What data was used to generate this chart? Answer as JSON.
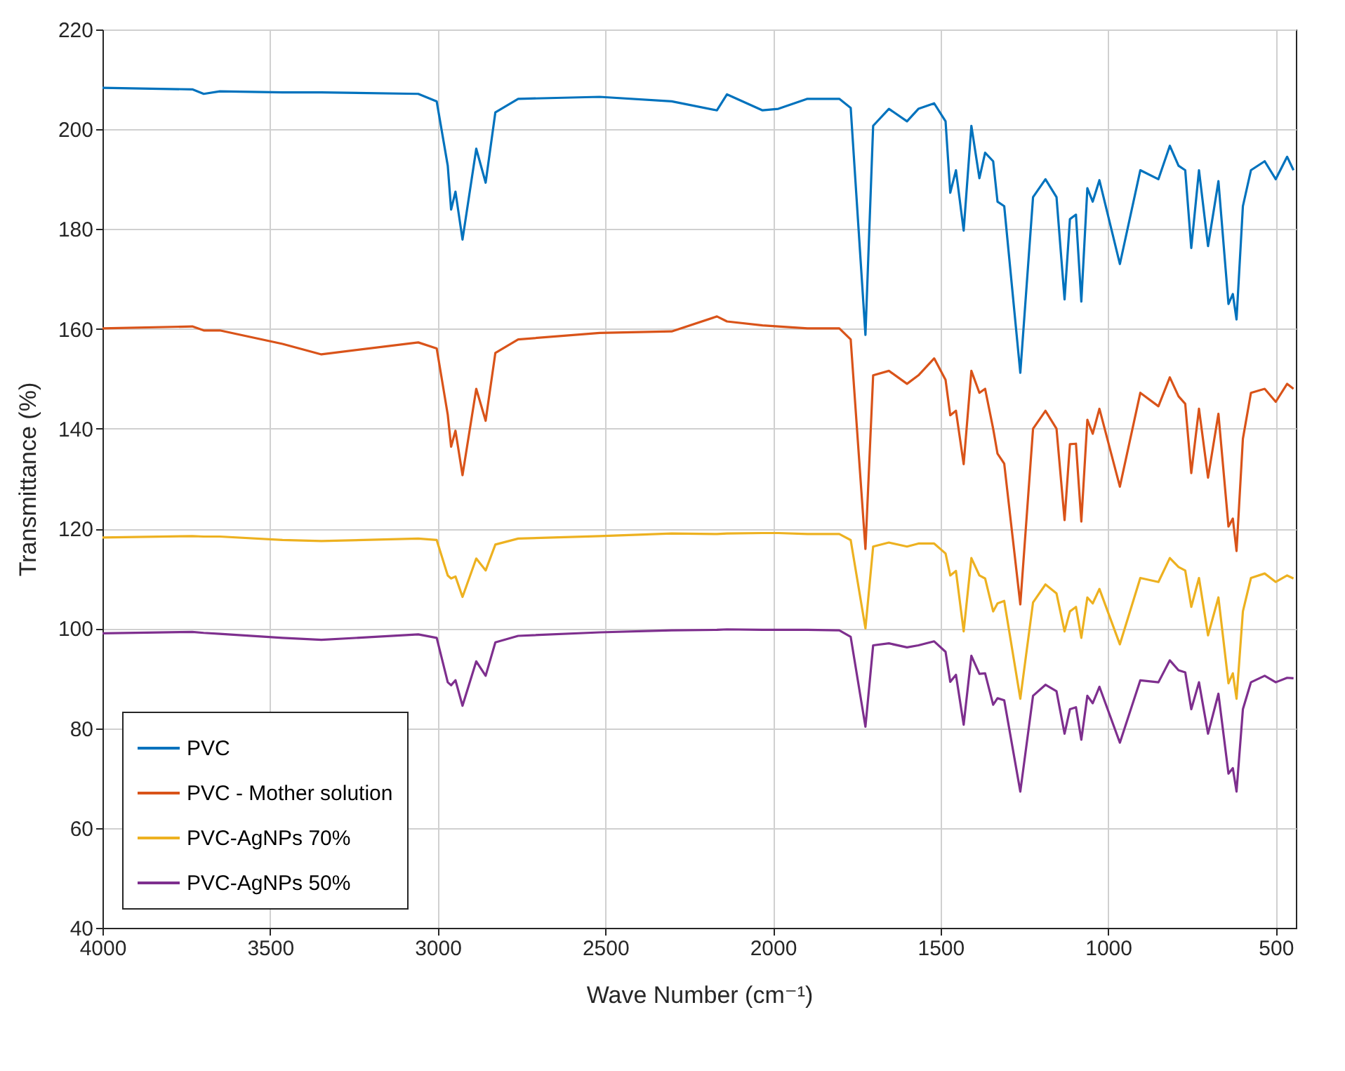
{
  "chart_data": {
    "type": "line",
    "xlabel": "Wave Number (cm⁻¹)",
    "ylabel": "Transmittance (%)",
    "x": [
      4000,
      3732,
      3698,
      3650,
      3463,
      3347,
      3058,
      3003,
      2970,
      2960,
      2947,
      2926,
      2885,
      2857,
      2828,
      2760,
      2517,
      2302,
      2167,
      2137,
      2031,
      1984,
      1897,
      1802,
      1768,
      1724,
      1701,
      1654,
      1600,
      1566,
      1519,
      1485,
      1471,
      1454,
      1431,
      1408,
      1384,
      1367,
      1343,
      1330,
      1310,
      1262,
      1224,
      1187,
      1154,
      1130,
      1114,
      1096,
      1080,
      1062,
      1046,
      1026,
      965,
      904,
      850,
      816,
      790,
      770,
      752,
      729,
      702,
      671,
      641,
      628,
      617,
      598,
      574,
      533,
      500,
      466,
      447
    ],
    "series": [
      {
        "name": "PVC",
        "color": "#0072bd",
        "values": [
          208.3,
          208.0,
          207.1,
          207.6,
          207.4,
          207.4,
          207.1,
          205.6,
          192.7,
          183.9,
          187.5,
          177.9,
          196.1,
          189.3,
          203.4,
          206.1,
          206.5,
          205.6,
          203.8,
          207.0,
          203.8,
          204.1,
          206.1,
          206.1,
          204.3,
          158.8,
          200.7,
          204.1,
          201.6,
          204.1,
          205.2,
          201.6,
          187.3,
          191.8,
          179.7,
          200.7,
          190.2,
          195.3,
          193.6,
          185.5,
          184.6,
          151.2,
          186.4,
          190.0,
          186.4,
          165.9,
          182.0,
          182.9,
          165.5,
          188.2,
          185.5,
          189.8,
          173.0,
          191.8,
          190.0,
          196.7,
          192.7,
          191.8,
          176.2,
          191.8,
          176.6,
          189.6,
          165.0,
          167.0,
          161.9,
          184.6,
          191.8,
          193.6,
          190.0,
          194.5,
          191.8
        ]
      },
      {
        "name": "PVC - Mother solution",
        "color": "#d95319",
        "values": [
          160.1,
          160.5,
          159.7,
          159.7,
          157.0,
          154.9,
          157.3,
          156.1,
          142.8,
          136.4,
          139.6,
          130.7,
          148.0,
          141.6,
          155.2,
          157.9,
          159.2,
          159.5,
          162.5,
          161.5,
          160.7,
          160.5,
          160.1,
          160.1,
          157.9,
          115.9,
          150.7,
          151.6,
          149.0,
          150.7,
          154.1,
          149.8,
          142.7,
          143.6,
          132.9,
          151.6,
          147.2,
          148.0,
          140.0,
          135.0,
          133.0,
          104.8,
          140.0,
          143.6,
          140.0,
          121.7,
          136.9,
          137.0,
          121.4,
          141.8,
          139.0,
          144.0,
          128.4,
          147.2,
          144.5,
          150.3,
          146.5,
          145.0,
          131.1,
          144.0,
          130.2,
          143.0,
          120.4,
          122.0,
          115.5,
          138.0,
          147.2,
          148.0,
          145.4,
          149.0,
          148.0
        ]
      },
      {
        "name": "PVC-AgNPs 70%",
        "color": "#edb120",
        "values": [
          118.2,
          118.5,
          118.4,
          118.4,
          117.7,
          117.5,
          118.0,
          117.7,
          110.6,
          110.0,
          110.4,
          106.3,
          114.0,
          111.6,
          116.8,
          118.0,
          118.5,
          119.0,
          118.9,
          119.0,
          119.1,
          119.1,
          118.9,
          118.9,
          117.7,
          100.0,
          116.4,
          117.2,
          116.4,
          117.0,
          117.0,
          115.0,
          110.6,
          111.5,
          99.4,
          114.1,
          110.6,
          110.0,
          103.4,
          105.0,
          105.5,
          85.9,
          105.2,
          108.8,
          107.0,
          99.4,
          103.4,
          104.3,
          98.1,
          106.2,
          105.0,
          107.9,
          96.8,
          110.1,
          109.3,
          114.1,
          112.3,
          111.6,
          104.3,
          110.1,
          98.6,
          106.2,
          89.0,
          91.0,
          85.9,
          103.4,
          110.1,
          111.0,
          109.3,
          110.6,
          110.0
        ]
      },
      {
        "name": "PVC-AgNPs 50%",
        "color": "#7e2f8e",
        "values": [
          99.0,
          99.3,
          99.1,
          98.9,
          98.1,
          97.7,
          98.8,
          98.1,
          89.2,
          88.6,
          89.6,
          84.5,
          93.4,
          90.5,
          97.2,
          98.5,
          99.2,
          99.6,
          99.7,
          99.8,
          99.7,
          99.7,
          99.7,
          99.6,
          98.3,
          80.3,
          96.6,
          97.0,
          96.2,
          96.6,
          97.4,
          95.3,
          89.3,
          90.7,
          80.7,
          94.5,
          90.9,
          91.0,
          84.7,
          86.0,
          85.6,
          67.3,
          86.5,
          88.7,
          87.4,
          78.9,
          83.8,
          84.2,
          77.7,
          86.5,
          85.0,
          88.3,
          77.1,
          89.6,
          89.2,
          93.6,
          91.6,
          91.2,
          83.8,
          89.2,
          78.9,
          86.9,
          70.9,
          72.0,
          67.3,
          83.8,
          89.2,
          90.5,
          89.2,
          90.1,
          90.0
        ]
      }
    ],
    "xlim": [
      4000,
      440
    ],
    "xticks": [
      4000,
      3500,
      3000,
      2500,
      2000,
      1500,
      1000,
      500
    ],
    "ylim": [
      40,
      220
    ],
    "yticks": [
      40,
      60,
      80,
      100,
      120,
      140,
      160,
      180,
      200,
      220
    ],
    "grid": true,
    "legend": "bottom left",
    "line_style": "solid"
  }
}
